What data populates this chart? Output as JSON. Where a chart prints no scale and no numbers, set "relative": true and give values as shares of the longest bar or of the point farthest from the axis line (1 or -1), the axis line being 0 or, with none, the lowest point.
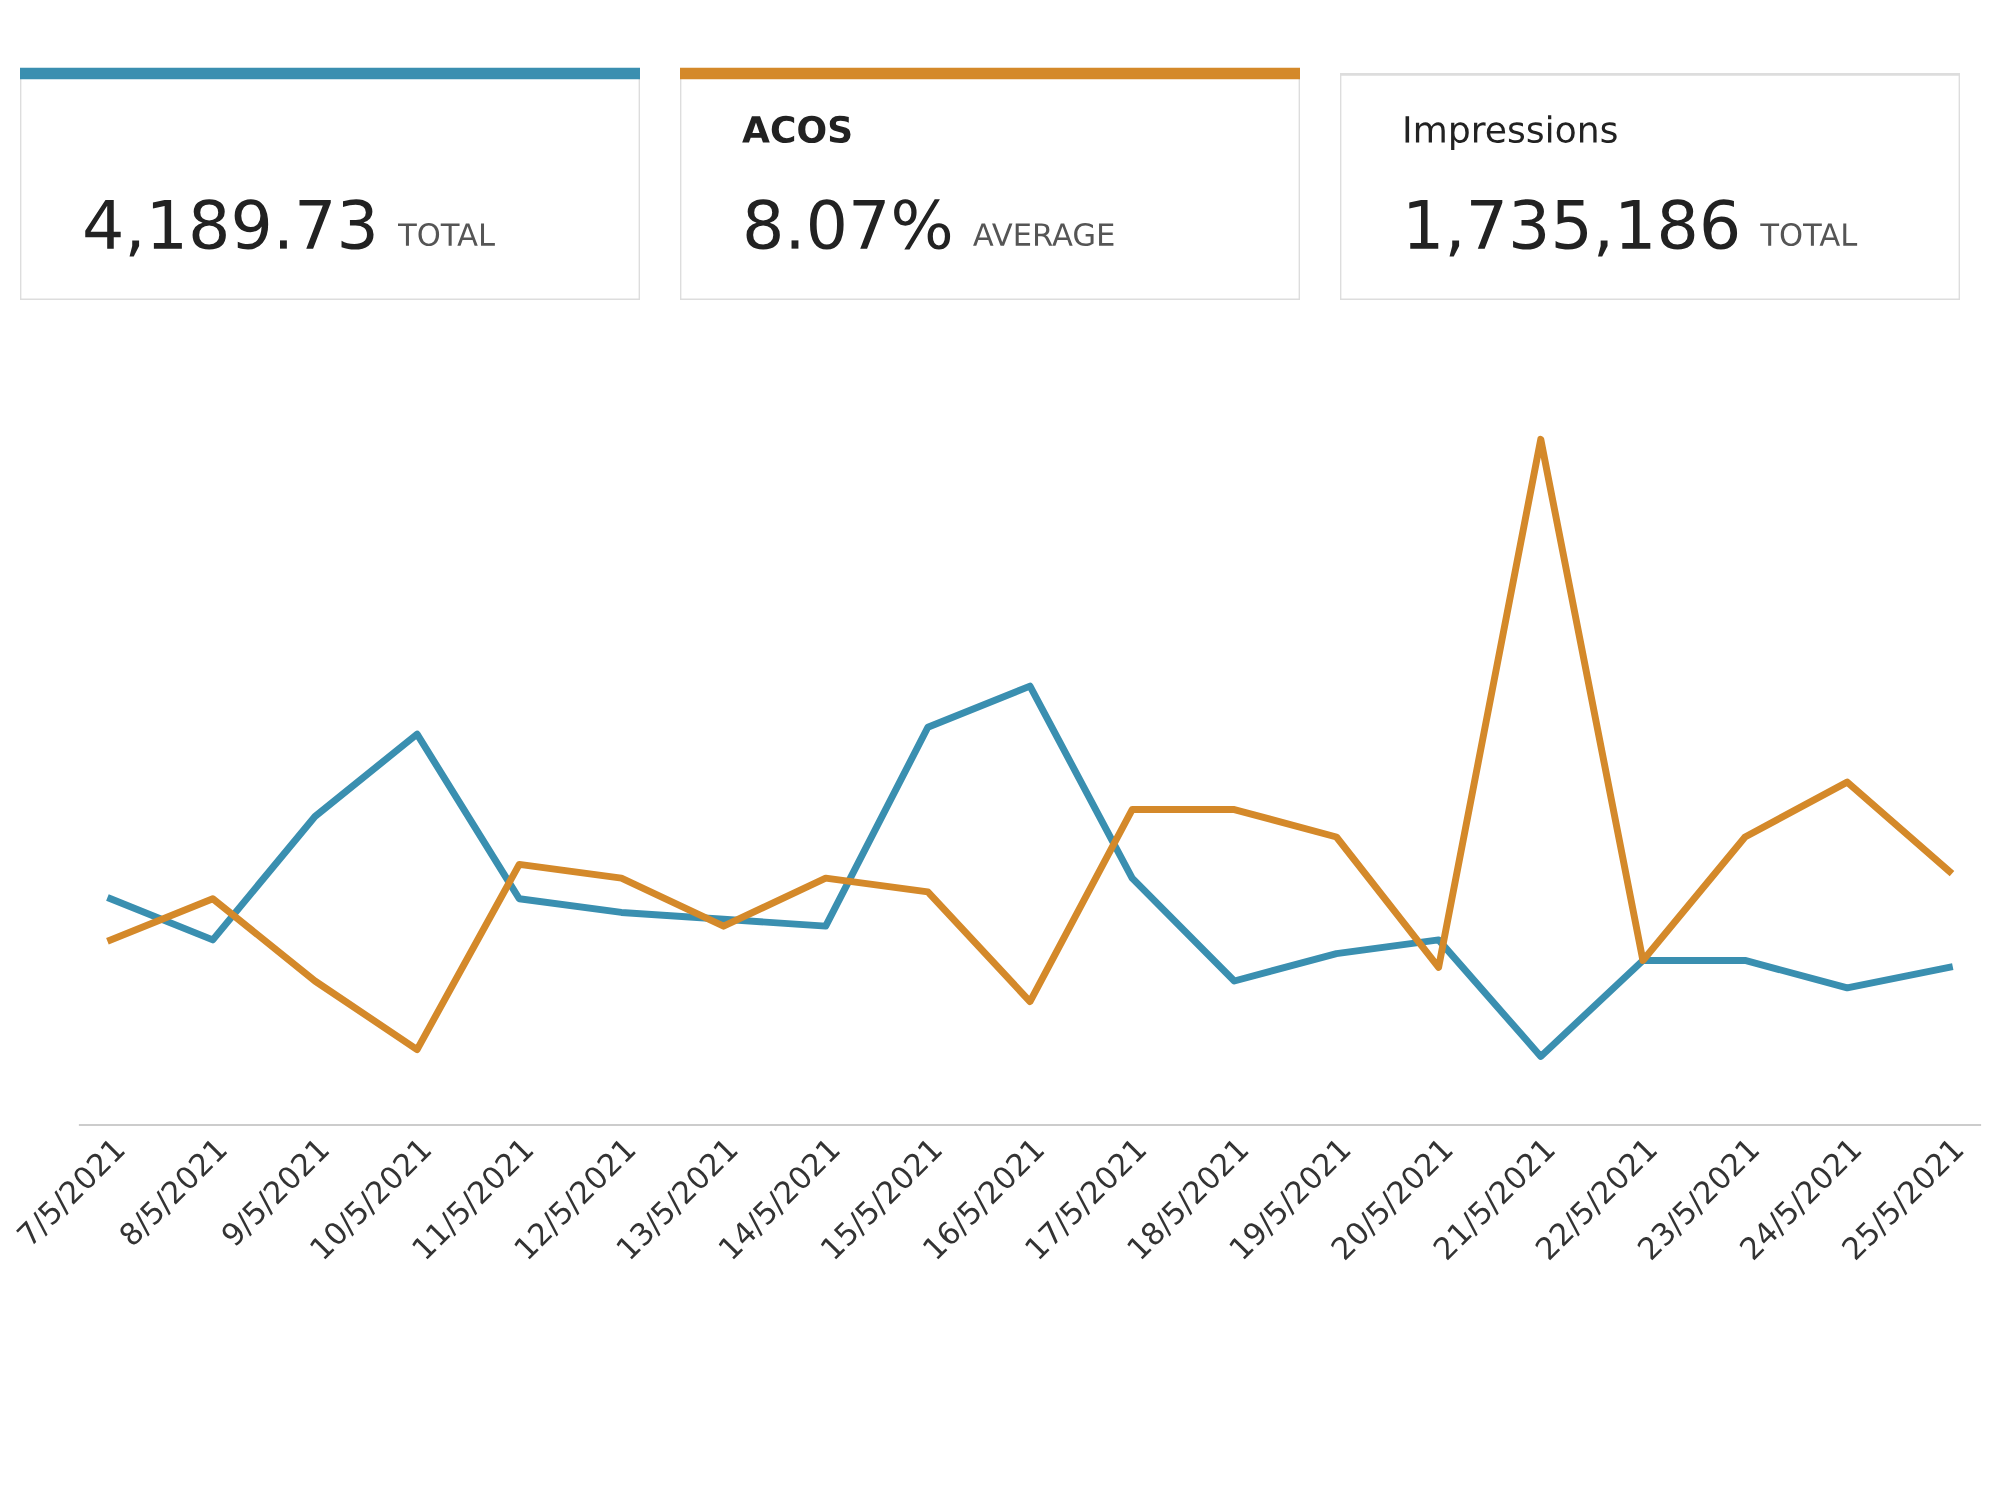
{
  "chart_data": [
    {
      "type": "other",
      "color": "#3a8fb0",
      "annotations": [
        "4,189.73",
        "TOTAL"
      ]
    },
    {
      "type": "other",
      "title": "ACOS",
      "color": "#d4892a",
      "annotations": [
        "8.07%",
        "AVERAGE"
      ]
    },
    {
      "type": "other",
      "title": "Impressions",
      "annotations": [
        "1,735,186",
        "TOTAL"
      ]
    },
    {
      "type": "line",
      "relative": true,
      "categories": [
        "7/5/2021",
        "8/5/2021",
        "9/5/2021",
        "10/5/2021",
        "11/5/2021",
        "12/5/2021",
        "13/5/2021",
        "14/5/2021",
        "15/5/2021",
        "16/5/2021",
        "17/5/2021",
        "18/5/2021",
        "19/5/2021",
        "20/5/2021",
        "21/5/2021",
        "22/5/2021",
        "23/5/2021",
        "24/5/2021",
        "25/5/2021"
      ],
      "series": [
        {
          "color": "#3a8fb0",
          "values": [
            0.33,
            0.27,
            0.45,
            0.57,
            0.33,
            0.31,
            0.3,
            0.29,
            0.58,
            0.64,
            0.36,
            0.21,
            0.25,
            0.27,
            0.1,
            0.24,
            0.24,
            0.2,
            0.23
          ]
        },
        {
          "color": "#d4892a",
          "values": [
            0.27,
            0.33,
            0.21,
            0.11,
            0.38,
            0.36,
            0.29,
            0.36,
            0.34,
            0.18,
            0.46,
            0.46,
            0.42,
            0.23,
            1,
            0.24,
            0.42,
            0.5,
            0.37
          ]
        }
      ]
    }
  ]
}
